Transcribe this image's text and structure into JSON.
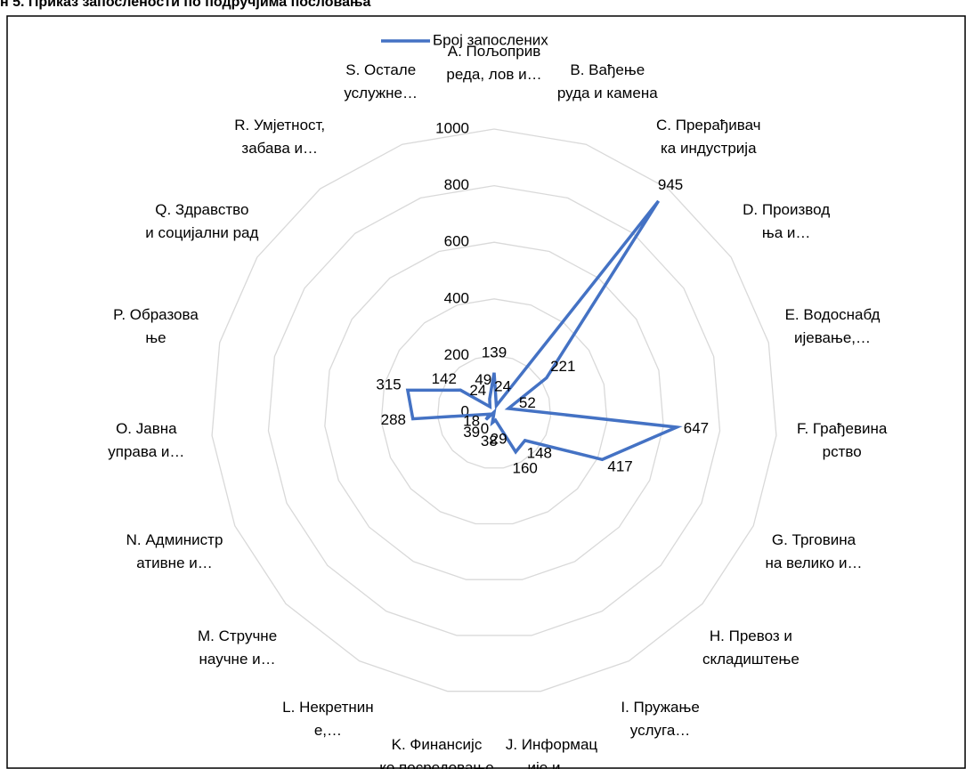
{
  "chart_data": {
    "type": "radar",
    "title": "н 5. Приказ запослености по подручјима пословања",
    "categories": [
      "A. Пољоприв\nреда, лов и…",
      "B. Вађење\nруда и камена",
      "C. Прерађивач\nка индустрија",
      "D. Производ\nња и…",
      "E. Водоснабд\nијевање,…",
      "F. Грађевина\nрство",
      "G. Трговина\nна велико и…",
      "H. Превоз и\nскладиштење",
      "I. Пружање\nуслуга…",
      "J. Информац\nије и…",
      "K. Финансијс\nко посредовање",
      "L. Некретнин\nе,…",
      "M. Стручне\nнаучне и…",
      "N. Администр\nативне и…",
      "O. Јавна\nуправа и…",
      "P. Образова\nње",
      "Q. Здравство\nи социјални рад",
      "R. Умјетност,\nзабава и…",
      "S. Остале\nуслужне…"
    ],
    "series": [
      {
        "name": "Број запослених",
        "color": "#4472c4",
        "values": [
          139,
          24,
          945,
          221,
          52,
          647,
          417,
          148,
          160,
          29,
          38,
          0,
          39,
          18,
          288,
          315,
          142,
          24,
          49
        ]
      }
    ],
    "ylim": [
      0,
      1000
    ],
    "yticks": [
      0,
      200,
      400,
      600,
      800,
      1000
    ],
    "grid": true,
    "legend": "top"
  }
}
